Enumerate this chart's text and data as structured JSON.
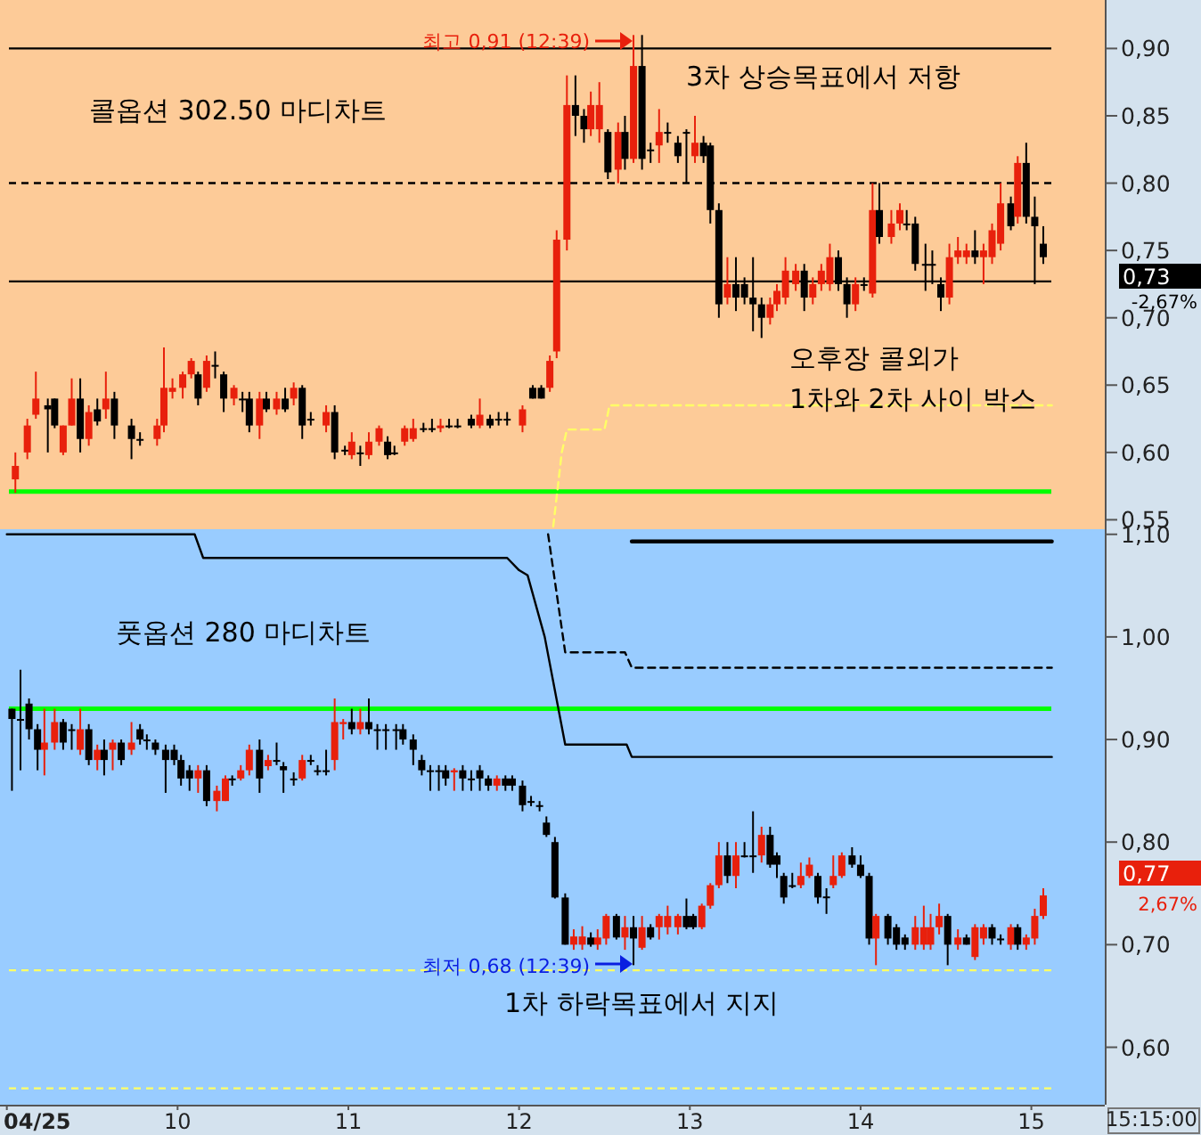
{
  "chart_data": [
    {
      "type": "candlestick",
      "xlim": [
        8.96,
        15.43
      ],
      "ylim": [
        0.543,
        0.936
      ],
      "tick_labels": "y",
      "yticks": [
        {
          "value": 0.55,
          "label": "0,55"
        },
        {
          "value": 0.6,
          "label": "0,60"
        },
        {
          "value": 0.65,
          "label": "0,65"
        },
        {
          "value": 0.7,
          "label": "0,70"
        },
        {
          "value": 0.75,
          "label": "0,75"
        },
        {
          "value": 0.8,
          "label": "0,80"
        },
        {
          "value": 0.85,
          "label": "0,85"
        },
        {
          "value": 0.9,
          "label": "0,90"
        }
      ],
      "x": [
        9.05,
        9.12,
        9.17,
        9.24,
        9.28,
        9.33,
        9.38,
        9.43,
        9.48,
        9.53,
        9.58,
        9.63,
        9.73,
        9.78,
        9.88,
        9.92,
        9.97,
        10.03,
        10.08,
        10.12,
        10.17,
        10.22,
        10.27,
        10.33,
        10.38,
        10.42,
        10.48,
        10.52,
        10.58,
        10.63,
        10.68,
        10.73,
        10.78,
        10.87,
        10.92,
        10.98,
        11.02,
        11.07,
        11.12,
        11.18,
        11.23,
        11.27,
        11.33,
        11.38,
        11.44,
        11.49,
        11.54,
        11.59,
        11.64,
        11.72,
        11.77,
        11.83,
        11.88,
        11.93,
        12.02,
        12.08,
        12.13,
        12.18,
        12.22,
        12.28,
        12.33,
        12.38,
        12.42,
        12.47,
        12.52,
        12.58,
        12.62,
        12.67,
        12.72,
        12.77,
        12.82,
        12.87,
        12.93,
        12.98,
        13.03,
        13.08,
        13.12,
        13.17,
        13.22,
        13.27,
        13.32,
        13.37,
        13.42,
        13.47,
        13.51,
        13.56,
        13.62,
        13.67,
        13.72,
        13.77,
        13.82,
        13.87,
        13.92,
        13.97,
        14.02,
        14.07,
        14.11,
        14.18,
        14.23,
        14.27,
        14.32,
        14.38,
        14.42,
        14.47,
        14.52,
        14.57,
        14.62,
        14.67,
        14.72,
        14.77,
        14.82,
        14.88,
        14.92,
        14.97,
        15.02,
        15.07
      ],
      "ohlc": [
        [
          0.58,
          0.6,
          0.57,
          0.59
        ],
        [
          0.6,
          0.625,
          0.595,
          0.62
        ],
        [
          0.628,
          0.66,
          0.625,
          0.64
        ],
        [
          0.635,
          0.64,
          0.6,
          0.632
        ],
        [
          0.64,
          0.64,
          0.618,
          0.62
        ],
        [
          0.6,
          0.62,
          0.598,
          0.62
        ],
        [
          0.62,
          0.655,
          0.62,
          0.64
        ],
        [
          0.64,
          0.655,
          0.6,
          0.61
        ],
        [
          0.61,
          0.635,
          0.605,
          0.63
        ],
        [
          0.632,
          0.64,
          0.62,
          0.623
        ],
        [
          0.632,
          0.66,
          0.625,
          0.64
        ],
        [
          0.64,
          0.645,
          0.61,
          0.62
        ],
        [
          0.62,
          0.625,
          0.595,
          0.61
        ],
        [
          0.61,
          0.615,
          0.605,
          0.61
        ],
        [
          0.61,
          0.625,
          0.605,
          0.62
        ],
        [
          0.62,
          0.678,
          0.615,
          0.648
        ],
        [
          0.645,
          0.655,
          0.64,
          0.648
        ],
        [
          0.648,
          0.66,
          0.64,
          0.658
        ],
        [
          0.658,
          0.67,
          0.655,
          0.668
        ],
        [
          0.658,
          0.66,
          0.635,
          0.64
        ],
        [
          0.648,
          0.672,
          0.645,
          0.668
        ],
        [
          0.665,
          0.675,
          0.655,
          0.665
        ],
        [
          0.658,
          0.66,
          0.63,
          0.64
        ],
        [
          0.64,
          0.65,
          0.635,
          0.648
        ],
        [
          0.64,
          0.645,
          0.63,
          0.64
        ],
        [
          0.64,
          0.645,
          0.615,
          0.62
        ],
        [
          0.62,
          0.645,
          0.61,
          0.64
        ],
        [
          0.64,
          0.645,
          0.63,
          0.632
        ],
        [
          0.632,
          0.645,
          0.628,
          0.64
        ],
        [
          0.64,
          0.648,
          0.63,
          0.632
        ],
        [
          0.64,
          0.652,
          0.635,
          0.648
        ],
        [
          0.648,
          0.65,
          0.61,
          0.62
        ],
        [
          0.625,
          0.63,
          0.62,
          0.625
        ],
        [
          0.62,
          0.635,
          0.615,
          0.63
        ],
        [
          0.63,
          0.635,
          0.595,
          0.6
        ],
        [
          0.602,
          0.605,
          0.598,
          0.602
        ],
        [
          0.598,
          0.615,
          0.595,
          0.608
        ],
        [
          0.6,
          0.605,
          0.59,
          0.6
        ],
        [
          0.598,
          0.615,
          0.595,
          0.608
        ],
        [
          0.608,
          0.62,
          0.605,
          0.618
        ],
        [
          0.608,
          0.612,
          0.595,
          0.598
        ],
        [
          0.6,
          0.605,
          0.598,
          0.6
        ],
        [
          0.608,
          0.62,
          0.605,
          0.618
        ],
        [
          0.61,
          0.625,
          0.608,
          0.618
        ],
        [
          0.618,
          0.622,
          0.615,
          0.618
        ],
        [
          0.618,
          0.625,
          0.615,
          0.618
        ],
        [
          0.618,
          0.625,
          0.615,
          0.62
        ],
        [
          0.62,
          0.625,
          0.618,
          0.62
        ],
        [
          0.62,
          0.625,
          0.618,
          0.62
        ],
        [
          0.625,
          0.628,
          0.618,
          0.62
        ],
        [
          0.62,
          0.64,
          0.618,
          0.628
        ],
        [
          0.625,
          0.628,
          0.618,
          0.62
        ],
        [
          0.625,
          0.63,
          0.62,
          0.625
        ],
        [
          0.625,
          0.63,
          0.62,
          0.625
        ],
        [
          0.62,
          0.635,
          0.615,
          0.632
        ],
        [
          0.648,
          0.65,
          0.64,
          0.64
        ],
        [
          0.648,
          0.65,
          0.64,
          0.64
        ],
        [
          0.648,
          0.672,
          0.645,
          0.668
        ],
        [
          0.675,
          0.765,
          0.67,
          0.758
        ],
        [
          0.758,
          0.88,
          0.75,
          0.858
        ],
        [
          0.858,
          0.88,
          0.835,
          0.85
        ],
        [
          0.85,
          0.855,
          0.83,
          0.84
        ],
        [
          0.84,
          0.868,
          0.835,
          0.858
        ],
        [
          0.84,
          0.875,
          0.83,
          0.858
        ],
        [
          0.838,
          0.84,
          0.803,
          0.808
        ],
        [
          0.81,
          0.845,
          0.8,
          0.838
        ],
        [
          0.838,
          0.85,
          0.81,
          0.818
        ],
        [
          0.818,
          0.91,
          0.815,
          0.887
        ],
        [
          0.887,
          0.91,
          0.81,
          0.818
        ],
        [
          0.825,
          0.83,
          0.815,
          0.825
        ],
        [
          0.828,
          0.855,
          0.815,
          0.838
        ],
        [
          0.838,
          0.845,
          0.83,
          0.838
        ],
        [
          0.83,
          0.835,
          0.815,
          0.82
        ],
        [
          0.838,
          0.84,
          0.8,
          0.838
        ],
        [
          0.82,
          0.85,
          0.815,
          0.83
        ],
        [
          0.83,
          0.835,
          0.815,
          0.82
        ],
        [
          0.828,
          0.83,
          0.77,
          0.78
        ],
        [
          0.78,
          0.785,
          0.7,
          0.71
        ],
        [
          0.715,
          0.745,
          0.71,
          0.725
        ],
        [
          0.725,
          0.745,
          0.705,
          0.715
        ],
        [
          0.725,
          0.73,
          0.71,
          0.715
        ],
        [
          0.715,
          0.745,
          0.69,
          0.71
        ],
        [
          0.71,
          0.715,
          0.685,
          0.7
        ],
        [
          0.7,
          0.715,
          0.695,
          0.71
        ],
        [
          0.71,
          0.725,
          0.705,
          0.72
        ],
        [
          0.715,
          0.745,
          0.71,
          0.735
        ],
        [
          0.725,
          0.74,
          0.72,
          0.735
        ],
        [
          0.735,
          0.74,
          0.705,
          0.715
        ],
        [
          0.715,
          0.73,
          0.71,
          0.725
        ],
        [
          0.725,
          0.74,
          0.72,
          0.735
        ],
        [
          0.725,
          0.755,
          0.72,
          0.745
        ],
        [
          0.745,
          0.75,
          0.72,
          0.725
        ],
        [
          0.725,
          0.73,
          0.7,
          0.71
        ],
        [
          0.71,
          0.73,
          0.705,
          0.725
        ],
        [
          0.725,
          0.73,
          0.72,
          0.725
        ],
        [
          0.718,
          0.8,
          0.715,
          0.78
        ],
        [
          0.78,
          0.8,
          0.755,
          0.76
        ],
        [
          0.76,
          0.78,
          0.755,
          0.77
        ],
        [
          0.77,
          0.785,
          0.765,
          0.78
        ],
        [
          0.77,
          0.78,
          0.765,
          0.77
        ],
        [
          0.77,
          0.775,
          0.735,
          0.74
        ],
        [
          0.74,
          0.755,
          0.72,
          0.74
        ],
        [
          0.74,
          0.75,
          0.725,
          0.74
        ],
        [
          0.725,
          0.73,
          0.705,
          0.715
        ],
        [
          0.715,
          0.755,
          0.71,
          0.745
        ],
        [
          0.745,
          0.76,
          0.74,
          0.75
        ],
        [
          0.745,
          0.755,
          0.74,
          0.75
        ],
        [
          0.75,
          0.765,
          0.74,
          0.745
        ],
        [
          0.745,
          0.755,
          0.725,
          0.75
        ],
        [
          0.745,
          0.77,
          0.74,
          0.765
        ],
        [
          0.755,
          0.8,
          0.75,
          0.785
        ],
        [
          0.785,
          0.79,
          0.765,
          0.768
        ],
        [
          0.775,
          0.82,
          0.77,
          0.815
        ],
        [
          0.815,
          0.83,
          0.77,
          0.775
        ],
        [
          0.775,
          0.79,
          0.725,
          0.768
        ],
        [
          0.755,
          0.768,
          0.74,
          0.745
        ]
      ],
      "series": [
        {
          "type": "line",
          "color": "#ffff66",
          "line_style": "dashed",
          "x": [
            12.2,
            12.25,
            12.28,
            12.5,
            12.53,
            15.12
          ],
          "values": [
            0.545,
            0.6,
            0.617,
            0.617,
            0.635,
            0.635
          ]
        }
      ],
      "ref_lines": [
        {
          "axis": "y",
          "value": 0.9,
          "color": "#000000"
        },
        {
          "axis": "y",
          "value": 0.8,
          "color": "#000000",
          "line_style": "dashed"
        },
        {
          "axis": "y",
          "value": 0.727,
          "color": "#000000"
        },
        {
          "axis": "y",
          "value": 0.571,
          "color": "#00ff00"
        }
      ],
      "annotations": [
        "콜옵션 302.50 마디차트",
        "최고 0,91 (12:39)",
        "3차 상승목표에서 저항",
        "오후장 콜외가",
        "1차와 2차 사이 박스",
        "0,73",
        "-2,67%"
      ]
    },
    {
      "type": "candlestick",
      "xlim": [
        8.96,
        15.43
      ],
      "ylim": [
        0.544,
        1.105
      ],
      "xticks": [
        {
          "value": 9,
          "label": "04/25"
        },
        10,
        11,
        12,
        13,
        14,
        15
      ],
      "yticks": [
        {
          "value": 0.6,
          "label": "0,60"
        },
        {
          "value": 0.7,
          "label": "0,70"
        },
        {
          "value": 0.8,
          "label": "0,80"
        },
        {
          "value": 0.9,
          "label": "0,90"
        },
        {
          "value": 1.0,
          "label": "1,00"
        },
        {
          "value": 1.1,
          "label": "1,10"
        }
      ],
      "x": [
        9.03,
        9.08,
        9.13,
        9.18,
        9.22,
        9.28,
        9.33,
        9.38,
        9.43,
        9.48,
        9.53,
        9.57,
        9.62,
        9.67,
        9.73,
        9.78,
        9.82,
        9.87,
        9.93,
        9.98,
        10.02,
        10.07,
        10.12,
        10.17,
        10.23,
        10.28,
        10.32,
        10.37,
        10.42,
        10.48,
        10.53,
        10.58,
        10.62,
        10.68,
        10.73,
        10.78,
        10.82,
        10.87,
        10.92,
        10.97,
        11.02,
        11.07,
        11.12,
        11.17,
        11.22,
        11.28,
        11.32,
        11.38,
        11.43,
        11.48,
        11.53,
        11.57,
        11.62,
        11.67,
        11.72,
        11.77,
        11.82,
        11.87,
        11.92,
        11.96,
        12.02,
        12.07,
        12.12,
        12.16,
        12.21,
        12.27,
        12.32,
        12.37,
        12.42,
        12.46,
        12.51,
        12.57,
        12.62,
        12.67,
        12.72,
        12.77,
        12.82,
        12.87,
        12.93,
        12.98,
        13.02,
        13.07,
        13.12,
        13.17,
        13.22,
        13.27,
        13.32,
        13.37,
        13.42,
        13.47,
        13.51,
        13.55,
        13.6,
        13.65,
        13.7,
        13.75,
        13.8,
        13.84,
        13.89,
        13.95,
        14.0,
        14.05,
        14.09,
        14.16,
        14.21,
        14.26,
        14.32,
        14.37,
        14.41,
        14.46,
        14.51,
        14.57,
        14.62,
        14.67,
        14.72,
        14.77,
        14.82,
        14.88,
        14.92,
        14.97,
        15.02,
        15.07
      ],
      "ohlc": [
        [
          0.93,
          0.93,
          0.85,
          0.92
        ],
        [
          0.92,
          0.968,
          0.87,
          0.92
        ],
        [
          0.935,
          0.94,
          0.9,
          0.91
        ],
        [
          0.91,
          0.915,
          0.87,
          0.89
        ],
        [
          0.89,
          0.93,
          0.865,
          0.897
        ],
        [
          0.897,
          0.93,
          0.89,
          0.917
        ],
        [
          0.917,
          0.92,
          0.89,
          0.897
        ],
        [
          0.91,
          0.915,
          0.89,
          0.91
        ],
        [
          0.89,
          0.93,
          0.885,
          0.91
        ],
        [
          0.91,
          0.915,
          0.875,
          0.88
        ],
        [
          0.88,
          0.895,
          0.87,
          0.89
        ],
        [
          0.89,
          0.9,
          0.865,
          0.88
        ],
        [
          0.89,
          0.9,
          0.87,
          0.897
        ],
        [
          0.897,
          0.9,
          0.875,
          0.88
        ],
        [
          0.89,
          0.917,
          0.885,
          0.897
        ],
        [
          0.91,
          0.915,
          0.895,
          0.9
        ],
        [
          0.9,
          0.905,
          0.89,
          0.9
        ],
        [
          0.897,
          0.9,
          0.885,
          0.89
        ],
        [
          0.89,
          0.895,
          0.848,
          0.88
        ],
        [
          0.89,
          0.895,
          0.875,
          0.88
        ],
        [
          0.88,
          0.885,
          0.855,
          0.862
        ],
        [
          0.87,
          0.875,
          0.85,
          0.862
        ],
        [
          0.862,
          0.875,
          0.848,
          0.87
        ],
        [
          0.87,
          0.875,
          0.835,
          0.84
        ],
        [
          0.84,
          0.855,
          0.83,
          0.85
        ],
        [
          0.84,
          0.865,
          0.84,
          0.862
        ],
        [
          0.862,
          0.865,
          0.855,
          0.862
        ],
        [
          0.862,
          0.875,
          0.86,
          0.87
        ],
        [
          0.87,
          0.895,
          0.865,
          0.89
        ],
        [
          0.89,
          0.9,
          0.848,
          0.862
        ],
        [
          0.874,
          0.885,
          0.87,
          0.88
        ],
        [
          0.88,
          0.897,
          0.875,
          0.88
        ],
        [
          0.874,
          0.878,
          0.848,
          0.87
        ],
        [
          0.862,
          0.868,
          0.855,
          0.862
        ],
        [
          0.862,
          0.885,
          0.86,
          0.88
        ],
        [
          0.88,
          0.885,
          0.875,
          0.88
        ],
        [
          0.87,
          0.875,
          0.865,
          0.87
        ],
        [
          0.87,
          0.89,
          0.865,
          0.87
        ],
        [
          0.88,
          0.94,
          0.87,
          0.917
        ],
        [
          0.915,
          0.92,
          0.9,
          0.917
        ],
        [
          0.917,
          0.93,
          0.905,
          0.91
        ],
        [
          0.91,
          0.93,
          0.905,
          0.917
        ],
        [
          0.917,
          0.94,
          0.905,
          0.91
        ],
        [
          0.91,
          0.915,
          0.89,
          0.91
        ],
        [
          0.91,
          0.915,
          0.89,
          0.91
        ],
        [
          0.91,
          0.915,
          0.89,
          0.91
        ],
        [
          0.91,
          0.915,
          0.895,
          0.9
        ],
        [
          0.9,
          0.905,
          0.875,
          0.89
        ],
        [
          0.88,
          0.885,
          0.865,
          0.87
        ],
        [
          0.87,
          0.875,
          0.85,
          0.87
        ],
        [
          0.87,
          0.875,
          0.85,
          0.87
        ],
        [
          0.87,
          0.875,
          0.855,
          0.862
        ],
        [
          0.868,
          0.872,
          0.85,
          0.87
        ],
        [
          0.87,
          0.875,
          0.85,
          0.862
        ],
        [
          0.862,
          0.87,
          0.85,
          0.862
        ],
        [
          0.87,
          0.875,
          0.85,
          0.862
        ],
        [
          0.862,
          0.865,
          0.85,
          0.855
        ],
        [
          0.855,
          0.865,
          0.85,
          0.862
        ],
        [
          0.862,
          0.865,
          0.85,
          0.855
        ],
        [
          0.862,
          0.865,
          0.85,
          0.855
        ],
        [
          0.855,
          0.86,
          0.83,
          0.836
        ],
        [
          0.84,
          0.845,
          0.835,
          0.84
        ],
        [
          0.836,
          0.84,
          0.83,
          0.836
        ],
        [
          0.819,
          0.825,
          0.805,
          0.807
        ],
        [
          0.8,
          0.805,
          0.745,
          0.746
        ],
        [
          0.746,
          0.75,
          0.7,
          0.7
        ],
        [
          0.7,
          0.715,
          0.695,
          0.708
        ],
        [
          0.7,
          0.718,
          0.695,
          0.708
        ],
        [
          0.707,
          0.712,
          0.698,
          0.7
        ],
        [
          0.7,
          0.715,
          0.695,
          0.707
        ],
        [
          0.706,
          0.73,
          0.7,
          0.728
        ],
        [
          0.728,
          0.73,
          0.705,
          0.707
        ],
        [
          0.707,
          0.728,
          0.695,
          0.717
        ],
        [
          0.717,
          0.728,
          0.68,
          0.706
        ],
        [
          0.697,
          0.728,
          0.695,
          0.717
        ],
        [
          0.717,
          0.72,
          0.705,
          0.707
        ],
        [
          0.717,
          0.73,
          0.705,
          0.728
        ],
        [
          0.717,
          0.738,
          0.71,
          0.728
        ],
        [
          0.717,
          0.73,
          0.71,
          0.728
        ],
        [
          0.728,
          0.745,
          0.715,
          0.717
        ],
        [
          0.728,
          0.73,
          0.715,
          0.717
        ],
        [
          0.717,
          0.74,
          0.715,
          0.738
        ],
        [
          0.738,
          0.76,
          0.735,
          0.758
        ],
        [
          0.758,
          0.8,
          0.755,
          0.787
        ],
        [
          0.787,
          0.8,
          0.76,
          0.767
        ],
        [
          0.767,
          0.8,
          0.755,
          0.787
        ],
        [
          0.787,
          0.8,
          0.785,
          0.787
        ],
        [
          0.787,
          0.83,
          0.77,
          0.787
        ],
        [
          0.787,
          0.815,
          0.78,
          0.807
        ],
        [
          0.807,
          0.815,
          0.775,
          0.778
        ],
        [
          0.787,
          0.79,
          0.765,
          0.778
        ],
        [
          0.767,
          0.77,
          0.74,
          0.746
        ],
        [
          0.758,
          0.77,
          0.755,
          0.758
        ],
        [
          0.758,
          0.78,
          0.755,
          0.767
        ],
        [
          0.767,
          0.785,
          0.765,
          0.778
        ],
        [
          0.767,
          0.77,
          0.74,
          0.746
        ],
        [
          0.747,
          0.755,
          0.73,
          0.747
        ],
        [
          0.758,
          0.787,
          0.755,
          0.767
        ],
        [
          0.767,
          0.79,
          0.765,
          0.787
        ],
        [
          0.787,
          0.795,
          0.775,
          0.778
        ],
        [
          0.778,
          0.787,
          0.765,
          0.767
        ],
        [
          0.767,
          0.77,
          0.7,
          0.706
        ],
        [
          0.706,
          0.73,
          0.68,
          0.728
        ],
        [
          0.728,
          0.73,
          0.7,
          0.706
        ],
        [
          0.717,
          0.72,
          0.695,
          0.7
        ],
        [
          0.707,
          0.71,
          0.695,
          0.7
        ],
        [
          0.7,
          0.728,
          0.695,
          0.717
        ],
        [
          0.7,
          0.738,
          0.695,
          0.717
        ],
        [
          0.7,
          0.73,
          0.695,
          0.717
        ],
        [
          0.717,
          0.74,
          0.71,
          0.728
        ],
        [
          0.728,
          0.73,
          0.68,
          0.7
        ],
        [
          0.7,
          0.715,
          0.695,
          0.707
        ],
        [
          0.707,
          0.71,
          0.7,
          0.7
        ],
        [
          0.688,
          0.72,
          0.685,
          0.717
        ],
        [
          0.706,
          0.72,
          0.7,
          0.717
        ],
        [
          0.717,
          0.72,
          0.7,
          0.706
        ],
        [
          0.706,
          0.71,
          0.7,
          0.706
        ],
        [
          0.7,
          0.72,
          0.695,
          0.717
        ],
        [
          0.717,
          0.72,
          0.695,
          0.7
        ],
        [
          0.7,
          0.71,
          0.695,
          0.707
        ],
        [
          0.706,
          0.735,
          0.7,
          0.728
        ],
        [
          0.728,
          0.755,
          0.725,
          0.748
        ]
      ],
      "series": [
        {
          "type": "line",
          "color": "#000000",
          "x": [
            9.0,
            10.1,
            10.15,
            11.93,
            12.0,
            12.05,
            12.15,
            12.27,
            12.63,
            12.66,
            15.12
          ],
          "values": [
            1.1,
            1.1,
            1.077,
            1.077,
            1.065,
            1.06,
            1.0,
            0.895,
            0.895,
            0.883,
            0.883
          ]
        },
        {
          "type": "line",
          "color": "#000000",
          "line_style": "dashed",
          "x": [
            12.17,
            12.27,
            12.62,
            12.66,
            15.12
          ],
          "values": [
            1.1,
            0.985,
            0.985,
            0.97,
            0.97
          ]
        },
        {
          "type": "line",
          "color": "#000000",
          "x": [
            12.66,
            15.12
          ],
          "values": [
            1.093,
            1.093
          ]
        }
      ],
      "ref_lines": [
        {
          "axis": "y",
          "value": 0.93,
          "color": "#00ff00"
        },
        {
          "axis": "y",
          "value": 0.675,
          "color": "#ffff66",
          "line_style": "dashed"
        },
        {
          "axis": "y",
          "value": 0.56,
          "color": "#ffff66",
          "line_style": "dashed"
        }
      ],
      "annotations": [
        "풋옵션 280 마디차트",
        "최저 0,68 (12:39)",
        "1차 하락목표에서 지지",
        "0,77",
        "2,67%",
        "15:15:00"
      ]
    }
  ]
}
